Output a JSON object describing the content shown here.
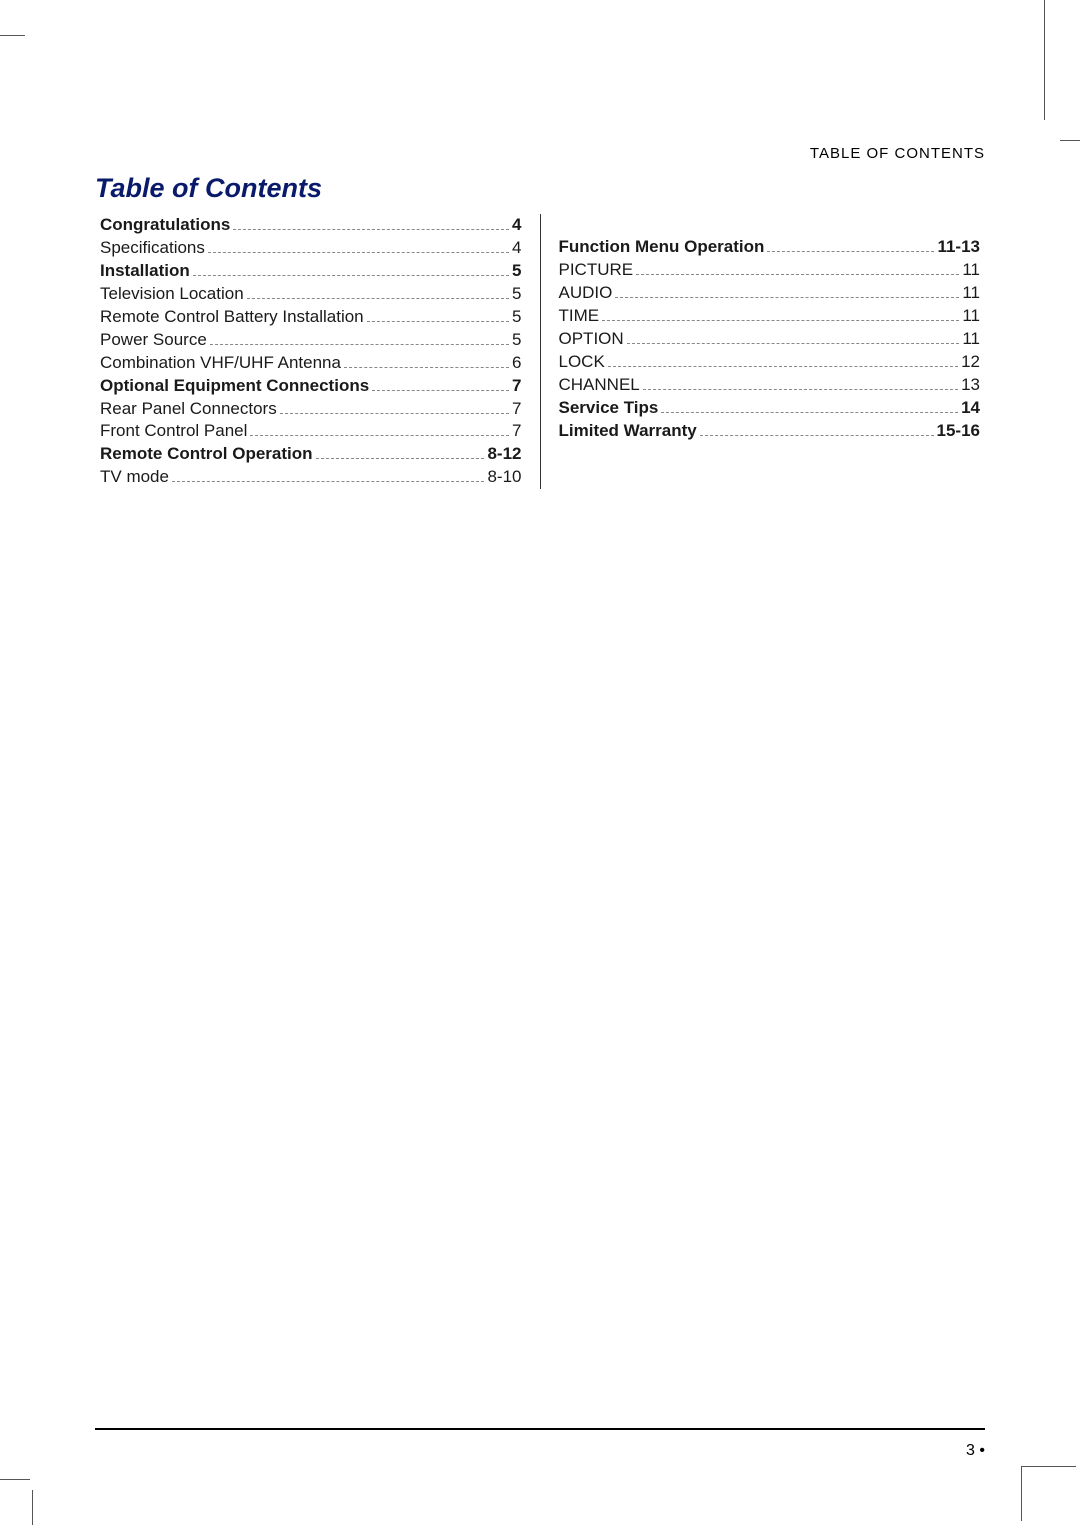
{
  "header_label": "TABLE OF CONTENTS",
  "title": "Table of Contents",
  "columns": {
    "left": [
      {
        "label": "Congratulations",
        "page": "4",
        "bold": true
      },
      {
        "label": "Specifications",
        "page": "4",
        "bold": false
      },
      {
        "label": "Installation",
        "page": "5",
        "bold": true
      },
      {
        "label": "Television Location",
        "page": "5",
        "bold": false
      },
      {
        "label": "Remote Control Battery Installation",
        "page": "5",
        "bold": false
      },
      {
        "label": "Power Source",
        "page": "5",
        "bold": false
      },
      {
        "label": "Combination VHF/UHF Antenna",
        "page": "6",
        "bold": false
      },
      {
        "label": "Optional Equipment Connections",
        "page": "7",
        "bold": true
      },
      {
        "label": "Rear Panel Connectors",
        "page": "7",
        "bold": false
      },
      {
        "label": "Front Control Panel",
        "page": "7",
        "bold": false
      },
      {
        "label": "Remote Control Operation",
        "page": "8-12",
        "bold": true
      },
      {
        "label": "TV mode",
        "page": "8-10",
        "bold": false
      }
    ],
    "right": [
      {
        "label": "Function Menu Operation",
        "page": "11-13",
        "bold": true
      },
      {
        "label": "PICTURE",
        "page": "11",
        "bold": false
      },
      {
        "label": "AUDIO",
        "page": "11",
        "bold": false
      },
      {
        "label": "TIME",
        "page": "11",
        "bold": false
      },
      {
        "label": "OPTION",
        "page": "11",
        "bold": false
      },
      {
        "label": "LOCK",
        "page": "12",
        "bold": false
      },
      {
        "label": "CHANNEL",
        "page": "13",
        "bold": false
      },
      {
        "label": "Service Tips",
        "page": "14",
        "bold": true
      },
      {
        "label": "Limited Warranty",
        "page": "15-16",
        "bold": true
      }
    ]
  },
  "page_number": "3",
  "colors": {
    "title": "#0a1a6b",
    "text": "#1a1a1a",
    "leader": "#888888",
    "background": "#ffffff",
    "rule": "#000000"
  },
  "typography": {
    "title_size_pt": 20,
    "body_size_pt": 13,
    "header_label_size_pt": 11
  }
}
